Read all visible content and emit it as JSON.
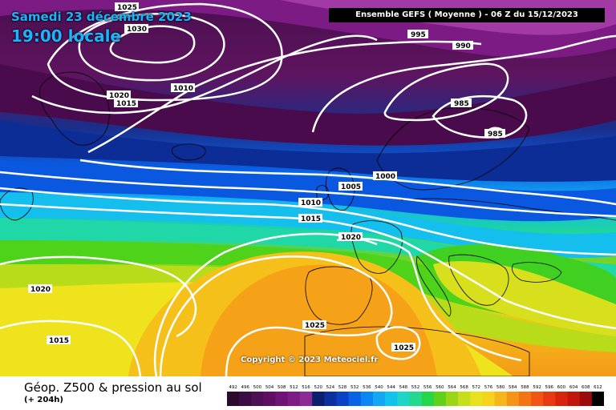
{
  "header": {
    "date": "Samedi 23 décembre 2023",
    "time": "19:00 locale",
    "model": "Ensemble GEFS  ( Moyenne )  -  06 Z du 15/12/2023"
  },
  "footer": {
    "title": "Géop. Z500 & pression au sol",
    "subtitle": "(+ 204h)"
  },
  "copyright": "Copyright © 2023 Meteociel.fr",
  "legend": {
    "ticks": [
      "492",
      "496",
      "500",
      "504",
      "508",
      "512",
      "516",
      "520",
      "524",
      "528",
      "532",
      "536",
      "540",
      "544",
      "548",
      "552",
      "556",
      "560",
      "564",
      "568",
      "572",
      "576",
      "580",
      "584",
      "588",
      "592",
      "596",
      "600",
      "604",
      "608",
      "612"
    ],
    "colors": [
      "#2b0a2e",
      "#3c0d44",
      "#4e1054",
      "#5f0f63",
      "#6f1474",
      "#7e1b86",
      "#8a2b96",
      "#0a1f6e",
      "#0c2f9e",
      "#0a42c6",
      "#0a63e6",
      "#0b86f2",
      "#13a6f5",
      "#12c2ee",
      "#1ed6c6",
      "#22d98e",
      "#25d64a",
      "#5fd11a",
      "#9bd616",
      "#c7de1c",
      "#e7e21d",
      "#f5d21b",
      "#f6b51a",
      "#f59417",
      "#f47414",
      "#f25412",
      "#e83a10",
      "#d8240d",
      "#c2150b",
      "#9a0b0a",
      "#000000"
    ]
  },
  "isobars": [
    "1030",
    "1025",
    "1020",
    "1015",
    "1010",
    "995",
    "990",
    "985",
    "985",
    "1000",
    "1005",
    "1010",
    "1015",
    "1020",
    "1020",
    "1015",
    "1025",
    "1025"
  ]
}
